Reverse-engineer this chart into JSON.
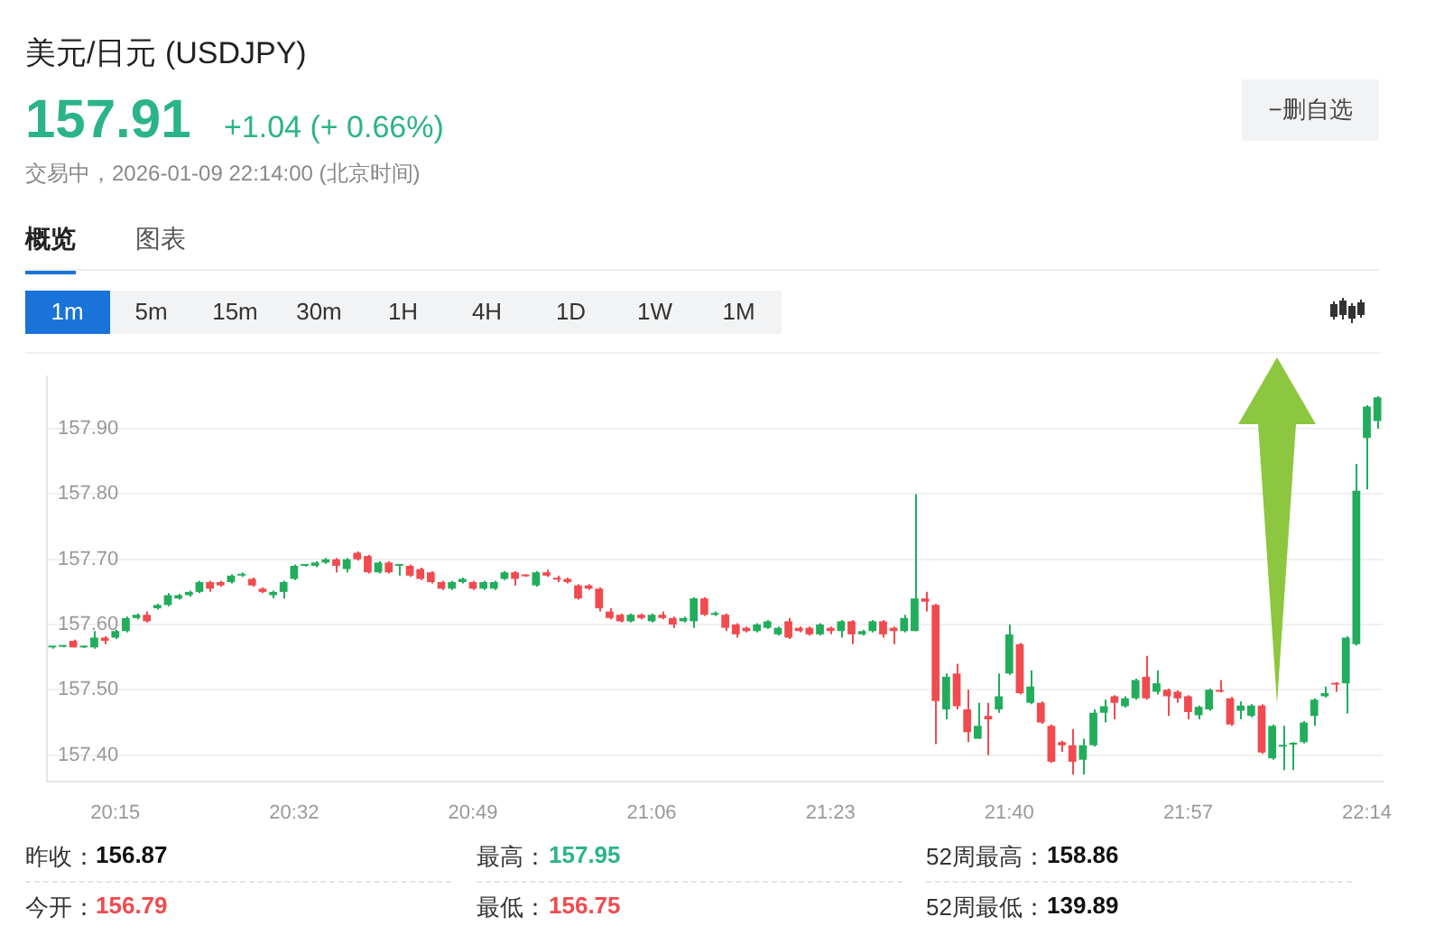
{
  "chart_data": {
    "type": "candlestick",
    "title": "美元/日元 (USDJPY)",
    "annotations": [
      "157.91",
      "+1.04 (+ 0.66%)",
      "交易中，2026-01-09 22:14:00 (北京时间)",
      "−删自选",
      "概览",
      "图表",
      "1m",
      "5m",
      "15m",
      "30m",
      "1H",
      "4H",
      "1D",
      "1W",
      "1M",
      "昨收：",
      "156.87",
      "最高：",
      "157.95",
      "52周最高：",
      "158.86",
      "今开：",
      "156.79",
      "最低：",
      "156.75",
      "52周最低：",
      "139.89"
    ],
    "categories": [
      null,
      null,
      null,
      null,
      null,
      null,
      "20:15",
      null,
      null,
      null,
      null,
      null,
      null,
      null,
      null,
      null,
      null,
      null,
      null,
      null,
      null,
      null,
      null,
      "20:32",
      null,
      null,
      null,
      null,
      null,
      null,
      null,
      null,
      null,
      null,
      null,
      null,
      null,
      null,
      null,
      null,
      "20:49",
      null,
      null,
      null,
      null,
      null,
      null,
      null,
      null,
      null,
      null,
      null,
      null,
      null,
      null,
      null,
      null,
      "21:06",
      null,
      null,
      null,
      null,
      null,
      null,
      null,
      null,
      null,
      null,
      null,
      null,
      null,
      null,
      null,
      null,
      "21:23",
      null,
      null,
      null,
      null,
      null,
      null,
      null,
      null,
      null,
      null,
      null,
      null,
      null,
      null,
      null,
      null,
      "21:40",
      null,
      null,
      null,
      null,
      null,
      null,
      null,
      null,
      null,
      null,
      null,
      null,
      null,
      null,
      null,
      null,
      "21:57",
      null,
      null,
      null,
      null,
      null,
      null,
      null,
      null,
      null,
      null,
      null,
      null,
      null,
      null,
      null,
      null,
      "22:14",
      null
    ],
    "ohlc": [
      [
        157.565,
        157.567,
        157.563,
        157.566
      ],
      [
        157.566,
        157.567,
        157.565,
        157.566
      ],
      [
        157.575,
        157.577,
        157.565,
        157.565
      ],
      [
        157.565,
        157.567,
        157.564,
        157.566
      ],
      [
        157.565,
        157.59,
        157.563,
        157.58
      ],
      [
        157.58,
        157.582,
        157.57,
        157.575
      ],
      [
        157.58,
        157.592,
        157.578,
        157.59
      ],
      [
        157.59,
        157.612,
        157.588,
        157.61
      ],
      [
        157.61,
        157.617,
        157.608,
        157.615
      ],
      [
        157.615,
        157.62,
        157.603,
        157.605
      ],
      [
        157.625,
        157.632,
        157.623,
        157.63
      ],
      [
        157.63,
        157.648,
        157.628,
        157.645
      ],
      [
        157.64,
        157.647,
        157.638,
        157.645
      ],
      [
        157.645,
        157.652,
        157.643,
        157.65
      ],
      [
        157.65,
        157.667,
        157.648,
        157.665
      ],
      [
        157.665,
        157.667,
        157.65,
        157.655
      ],
      [
        157.665,
        157.667,
        157.658,
        157.66
      ],
      [
        157.665,
        157.677,
        157.663,
        157.675
      ],
      [
        157.675,
        157.68,
        157.673,
        157.676
      ],
      [
        157.67,
        157.672,
        157.658,
        157.66
      ],
      [
        157.655,
        157.657,
        157.648,
        157.65
      ],
      [
        157.645,
        157.652,
        157.64,
        157.65
      ],
      [
        157.65,
        157.667,
        157.64,
        157.665
      ],
      [
        157.67,
        157.692,
        157.668,
        157.69
      ],
      [
        157.69,
        157.692,
        157.689,
        157.691
      ],
      [
        157.69,
        157.697,
        157.688,
        157.695
      ],
      [
        157.695,
        157.702,
        157.693,
        157.7
      ],
      [
        157.7,
        157.702,
        157.68,
        157.69
      ],
      [
        157.685,
        157.702,
        157.68,
        157.7
      ],
      [
        157.71,
        157.712,
        157.698,
        157.7
      ],
      [
        157.705,
        157.707,
        157.678,
        157.68
      ],
      [
        157.68,
        157.697,
        157.678,
        157.695
      ],
      [
        157.695,
        157.697,
        157.678,
        157.68
      ],
      [
        157.69,
        157.692,
        157.675,
        157.691
      ],
      [
        157.69,
        157.692,
        157.673,
        157.675
      ],
      [
        157.685,
        157.687,
        157.668,
        157.67
      ],
      [
        157.68,
        157.682,
        157.663,
        157.665
      ],
      [
        157.665,
        157.667,
        157.653,
        157.655
      ],
      [
        157.655,
        157.667,
        157.653,
        157.665
      ],
      [
        157.665,
        157.672,
        157.663,
        157.67
      ],
      [
        157.665,
        157.667,
        157.653,
        157.655
      ],
      [
        157.655,
        157.667,
        157.653,
        157.665
      ],
      [
        157.655,
        157.667,
        157.653,
        157.665
      ],
      [
        157.67,
        157.682,
        157.668,
        157.68
      ],
      [
        157.68,
        157.682,
        157.66,
        157.67
      ],
      [
        157.675,
        157.677,
        157.673,
        157.674
      ],
      [
        157.66,
        157.682,
        157.658,
        157.68
      ],
      [
        157.68,
        157.684,
        157.673,
        157.675
      ],
      [
        157.67,
        157.675,
        157.665,
        157.669
      ],
      [
        157.67,
        157.672,
        157.663,
        157.665
      ],
      [
        157.66,
        157.662,
        157.638,
        157.64
      ],
      [
        157.66,
        157.662,
        157.653,
        157.655
      ],
      [
        157.655,
        157.657,
        157.62,
        157.625
      ],
      [
        157.62,
        157.625,
        157.608,
        157.61
      ],
      [
        157.615,
        157.617,
        157.603,
        157.605
      ],
      [
        157.605,
        157.617,
        157.603,
        157.615
      ],
      [
        157.615,
        157.617,
        157.608,
        157.61
      ],
      [
        157.605,
        157.617,
        157.603,
        157.615
      ],
      [
        157.615,
        157.62,
        157.608,
        157.61
      ],
      [
        157.61,
        157.612,
        157.595,
        157.6
      ],
      [
        157.605,
        157.612,
        157.603,
        157.61
      ],
      [
        157.605,
        157.642,
        157.595,
        157.64
      ],
      [
        157.64,
        157.642,
        157.613,
        157.615
      ],
      [
        157.615,
        157.62,
        157.613,
        157.616
      ],
      [
        157.615,
        157.617,
        157.59,
        157.595
      ],
      [
        157.6,
        157.602,
        157.58,
        157.585
      ],
      [
        157.595,
        157.597,
        157.588,
        157.59
      ],
      [
        157.59,
        157.602,
        157.588,
        157.6
      ],
      [
        157.595,
        157.607,
        157.593,
        157.605
      ],
      [
        157.585,
        157.597,
        157.583,
        157.595
      ],
      [
        157.605,
        157.61,
        157.578,
        157.58
      ],
      [
        157.595,
        157.597,
        157.588,
        157.59
      ],
      [
        157.595,
        157.597,
        157.583,
        157.585
      ],
      [
        157.585,
        157.602,
        157.583,
        157.6
      ],
      [
        157.595,
        157.597,
        157.585,
        157.59
      ],
      [
        157.59,
        157.607,
        157.58,
        157.605
      ],
      [
        157.605,
        157.607,
        157.57,
        157.585
      ],
      [
        157.585,
        157.592,
        157.583,
        157.59
      ],
      [
        157.59,
        157.607,
        157.588,
        157.605
      ],
      [
        157.605,
        157.607,
        157.58,
        157.585
      ],
      [
        157.595,
        157.597,
        157.57,
        157.59
      ],
      [
        157.59,
        157.615,
        157.588,
        157.61
      ],
      [
        157.59,
        157.8,
        157.59,
        157.64
      ],
      [
        157.64,
        157.65,
        157.62,
        157.635
      ],
      [
        157.63,
        157.632,
        157.417,
        157.483
      ],
      [
        157.47,
        157.525,
        157.455,
        157.52
      ],
      [
        157.525,
        157.54,
        157.47,
        157.475
      ],
      [
        157.47,
        157.5,
        157.42,
        157.435
      ],
      [
        157.425,
        157.48,
        157.425,
        157.445
      ],
      [
        157.46,
        157.48,
        157.4,
        157.455
      ],
      [
        157.47,
        157.525,
        157.465,
        157.49
      ],
      [
        157.525,
        157.6,
        157.523,
        157.585
      ],
      [
        157.57,
        157.572,
        157.493,
        157.495
      ],
      [
        157.48,
        157.53,
        157.478,
        157.505
      ],
      [
        157.48,
        157.482,
        157.448,
        157.45
      ],
      [
        157.445,
        157.447,
        157.388,
        157.39
      ],
      [
        157.42,
        157.422,
        157.405,
        157.415
      ],
      [
        157.415,
        157.44,
        157.37,
        157.39
      ],
      [
        157.393,
        157.425,
        157.37,
        157.415
      ],
      [
        157.415,
        157.47,
        157.413,
        157.465
      ],
      [
        157.465,
        157.485,
        157.45,
        157.475
      ],
      [
        157.49,
        157.492,
        157.455,
        157.48
      ],
      [
        157.475,
        157.49,
        157.473,
        157.487
      ],
      [
        157.487,
        157.517,
        157.485,
        157.515
      ],
      [
        157.52,
        157.552,
        157.485,
        157.487
      ],
      [
        157.497,
        157.53,
        157.493,
        157.51
      ],
      [
        157.5,
        157.502,
        157.46,
        157.49
      ],
      [
        157.497,
        157.499,
        157.48,
        157.487
      ],
      [
        157.49,
        157.492,
        157.455,
        157.466
      ],
      [
        157.461,
        157.476,
        157.455,
        157.474
      ],
      [
        157.47,
        157.502,
        157.468,
        157.5
      ],
      [
        157.498,
        157.515,
        157.496,
        157.497
      ],
      [
        157.487,
        157.489,
        157.445,
        157.447
      ],
      [
        157.468,
        157.482,
        157.455,
        157.476
      ],
      [
        157.46,
        157.478,
        157.458,
        157.476
      ],
      [
        157.476,
        157.478,
        157.402,
        157.404
      ],
      [
        157.395,
        157.447,
        157.393,
        157.445
      ],
      [
        157.413,
        157.445,
        157.377,
        157.415
      ],
      [
        157.416,
        157.42,
        157.377,
        157.418
      ],
      [
        157.42,
        157.452,
        157.418,
        157.45
      ],
      [
        157.46,
        157.487,
        157.445,
        157.485
      ],
      [
        157.49,
        157.505,
        157.488,
        157.495
      ],
      [
        157.51,
        157.512,
        157.497,
        157.508
      ],
      [
        157.51,
        157.582,
        157.464,
        157.58
      ],
      [
        157.57,
        157.846,
        157.568,
        157.805
      ],
      [
        157.886,
        157.936,
        157.807,
        157.934
      ],
      [
        157.912,
        157.95,
        157.9,
        157.948
      ]
    ],
    "colors": [
      "#21ad5c",
      "#21ad5c",
      "#f04b50",
      "#21ad5c",
      "#21ad5c",
      "#f04b50",
      "#21ad5c",
      "#21ad5c",
      "#21ad5c",
      "#f04b50",
      "#21ad5c",
      "#21ad5c",
      "#21ad5c",
      "#21ad5c",
      "#21ad5c",
      "#f04b50",
      "#f04b50",
      "#21ad5c",
      "#21ad5c",
      "#f04b50",
      "#f04b50",
      "#21ad5c",
      "#21ad5c",
      "#21ad5c",
      "#21ad5c",
      "#21ad5c",
      "#21ad5c",
      "#f04b50",
      "#21ad5c",
      "#f04b50",
      "#f04b50",
      "#21ad5c",
      "#f04b50",
      "#21ad5c",
      "#f04b50",
      "#f04b50",
      "#f04b50",
      "#f04b50",
      "#21ad5c",
      "#21ad5c",
      "#f04b50",
      "#21ad5c",
      "#21ad5c",
      "#21ad5c",
      "#f04b50",
      "#f04b50",
      "#21ad5c",
      "#f04b50",
      "#f04b50",
      "#f04b50",
      "#f04b50",
      "#f04b50",
      "#f04b50",
      "#f04b50",
      "#f04b50",
      "#21ad5c",
      "#f04b50",
      "#21ad5c",
      "#f04b50",
      "#f04b50",
      "#21ad5c",
      "#21ad5c",
      "#f04b50",
      "#21ad5c",
      "#f04b50",
      "#f04b50",
      "#f04b50",
      "#21ad5c",
      "#21ad5c",
      "#21ad5c",
      "#f04b50",
      "#f04b50",
      "#f04b50",
      "#21ad5c",
      "#f04b50",
      "#21ad5c",
      "#f04b50",
      "#21ad5c",
      "#21ad5c",
      "#f04b50",
      "#f04b50",
      "#21ad5c",
      "#21ad5c",
      "#f04b50",
      "#f04b50",
      "#21ad5c",
      "#f04b50",
      "#f04b50",
      "#21ad5c",
      "#f04b50",
      "#21ad5c",
      "#21ad5c",
      "#f04b50",
      "#21ad5c",
      "#f04b50",
      "#f04b50",
      "#f04b50",
      "#f04b50",
      "#21ad5c",
      "#21ad5c",
      "#21ad5c",
      "#f04b50",
      "#21ad5c",
      "#21ad5c",
      "#f04b50",
      "#21ad5c",
      "#f04b50",
      "#f04b50",
      "#f04b50",
      "#21ad5c",
      "#21ad5c",
      "#f04b50",
      "#f04b50",
      "#21ad5c",
      "#21ad5c",
      "#f04b50",
      "#21ad5c",
      "#21ad5c",
      "#21ad5c",
      "#21ad5c",
      "#21ad5c",
      "#21ad5c",
      "#f04b50",
      "#21ad5c",
      "#21ad5c",
      "#21ad5c",
      "#21ad5c"
    ],
    "ylim": [
      157.36,
      157.98
    ],
    "yticks": [
      {
        "value": 157.4,
        "label": "157.40"
      },
      {
        "value": 157.5,
        "label": "157.50"
      },
      {
        "value": 157.6,
        "label": "157.60"
      },
      {
        "value": 157.7,
        "label": "157.70"
      },
      {
        "value": 157.8,
        "label": "157.80"
      },
      {
        "value": 157.9,
        "label": "157.90"
      }
    ],
    "grid": "y",
    "legend": false
  }
}
